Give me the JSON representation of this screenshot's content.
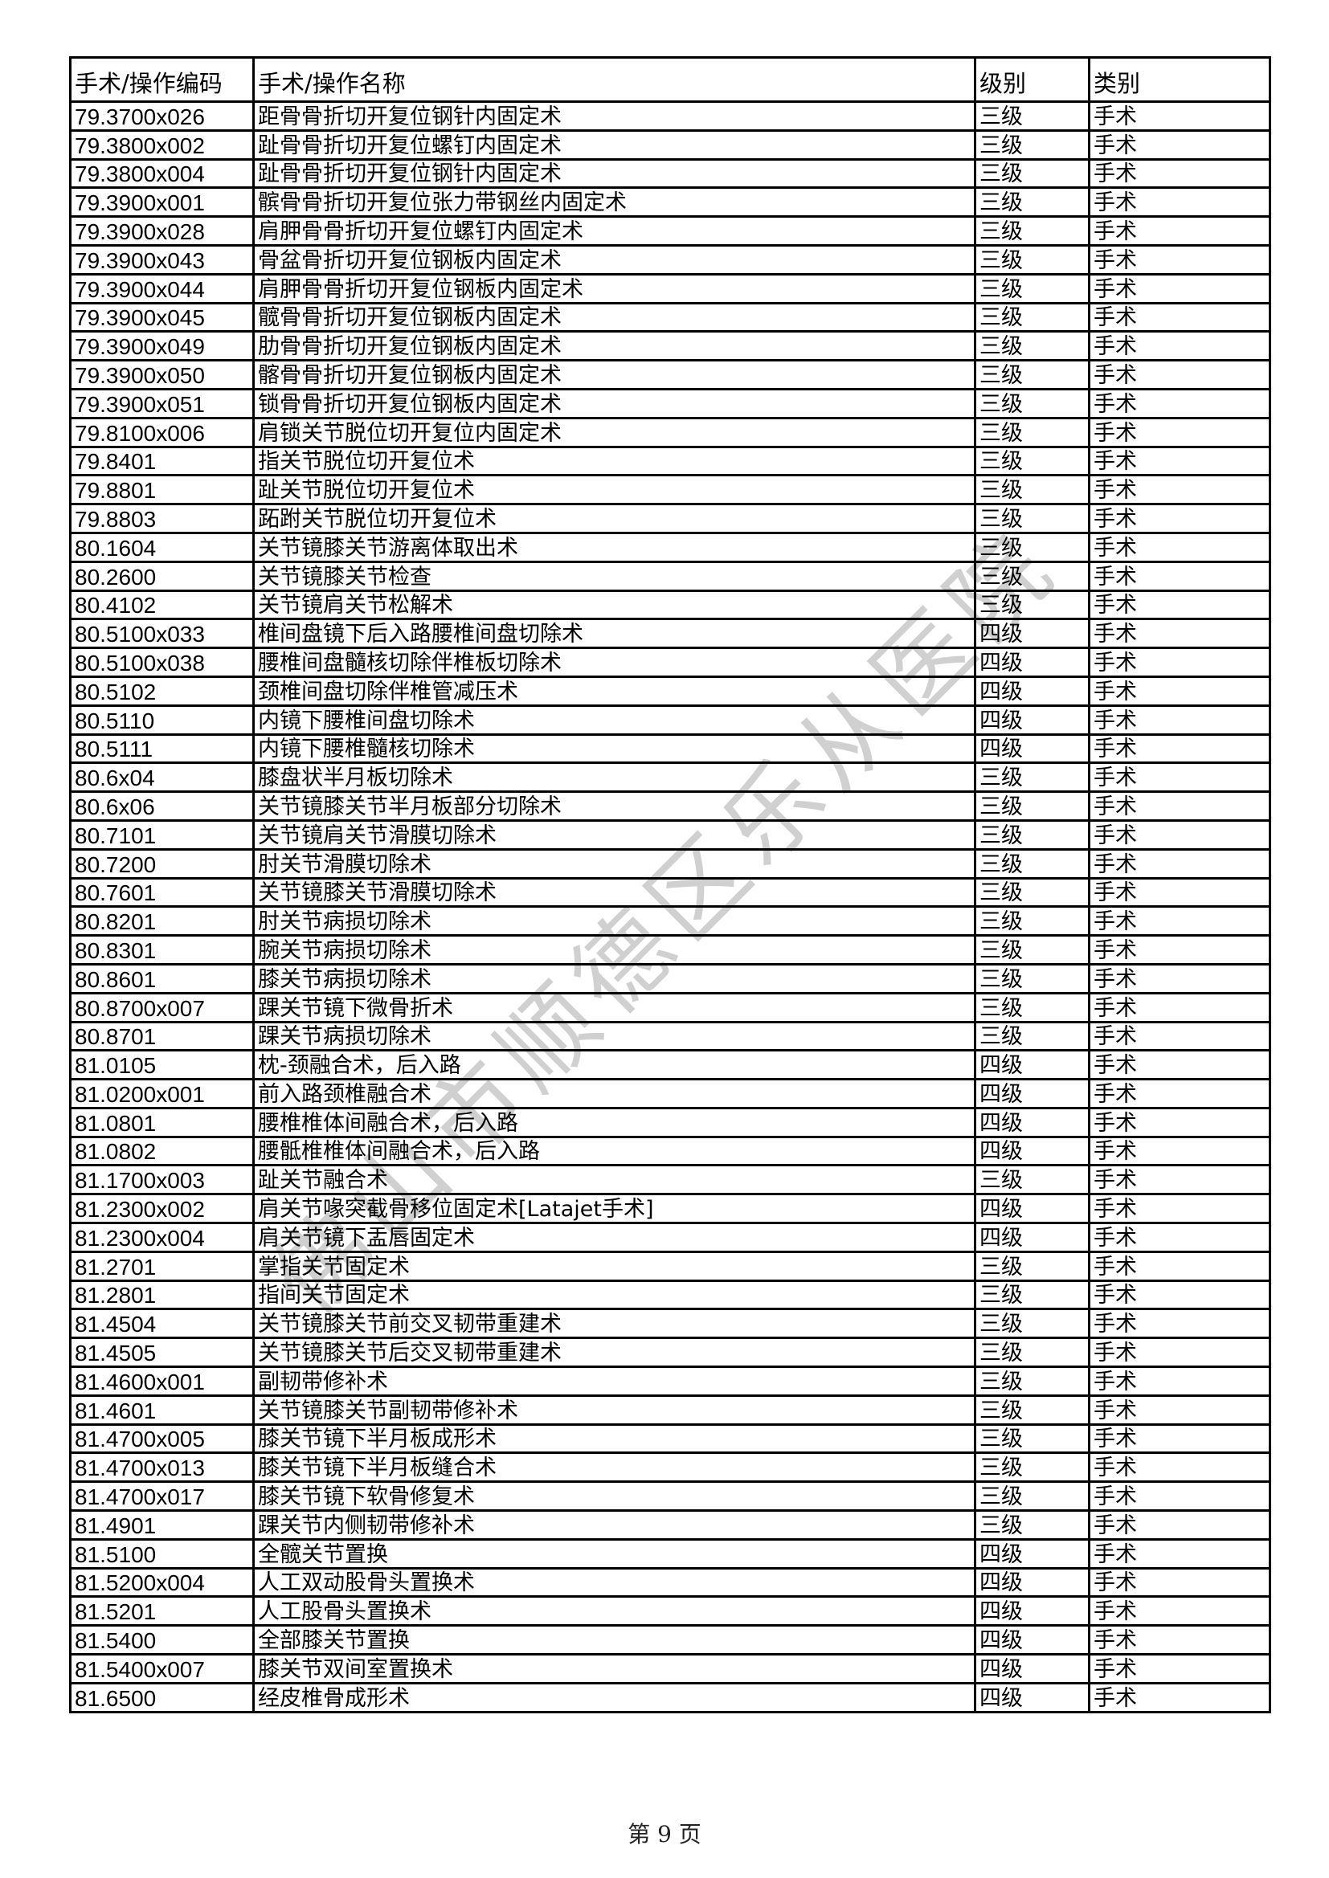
{
  "table": {
    "headers": [
      "手术/操作编码",
      "手术/操作名称",
      "级别",
      "类别"
    ],
    "rows": [
      [
        "79.3700x026",
        "距骨骨折切开复位钢针内固定术",
        "三级",
        "手术"
      ],
      [
        "79.3800x002",
        "趾骨骨折切开复位螺钉内固定术",
        "三级",
        "手术"
      ],
      [
        "79.3800x004",
        "趾骨骨折切开复位钢针内固定术",
        "三级",
        "手术"
      ],
      [
        "79.3900x001",
        "髌骨骨折切开复位张力带钢丝内固定术",
        "三级",
        "手术"
      ],
      [
        "79.3900x028",
        "肩胛骨骨折切开复位螺钉内固定术",
        "三级",
        "手术"
      ],
      [
        "79.3900x043",
        "骨盆骨折切开复位钢板内固定术",
        "三级",
        "手术"
      ],
      [
        "79.3900x044",
        "肩胛骨骨折切开复位钢板内固定术",
        "三级",
        "手术"
      ],
      [
        "79.3900x045",
        "髋骨骨折切开复位钢板内固定术",
        "三级",
        "手术"
      ],
      [
        "79.3900x049",
        "肋骨骨折切开复位钢板内固定术",
        "三级",
        "手术"
      ],
      [
        "79.3900x050",
        "髂骨骨折切开复位钢板内固定术",
        "三级",
        "手术"
      ],
      [
        "79.3900x051",
        "锁骨骨折切开复位钢板内固定术",
        "三级",
        "手术"
      ],
      [
        "79.8100x006",
        "肩锁关节脱位切开复位内固定术",
        "三级",
        "手术"
      ],
      [
        "79.8401",
        "指关节脱位切开复位术",
        "三级",
        "手术"
      ],
      [
        "79.8801",
        "趾关节脱位切开复位术",
        "三级",
        "手术"
      ],
      [
        "79.8803",
        "跖跗关节脱位切开复位术",
        "三级",
        "手术"
      ],
      [
        "80.1604",
        "关节镜膝关节游离体取出术",
        "三级",
        "手术"
      ],
      [
        "80.2600",
        "关节镜膝关节检查",
        "三级",
        "手术"
      ],
      [
        "80.4102",
        "关节镜肩关节松解术",
        "三级",
        "手术"
      ],
      [
        "80.5100x033",
        "椎间盘镜下后入路腰椎间盘切除术",
        "四级",
        "手术"
      ],
      [
        "80.5100x038",
        "腰椎间盘髓核切除伴椎板切除术",
        "四级",
        "手术"
      ],
      [
        "80.5102",
        "颈椎间盘切除伴椎管减压术",
        "四级",
        "手术"
      ],
      [
        "80.5110",
        "内镜下腰椎间盘切除术",
        "四级",
        "手术"
      ],
      [
        "80.5111",
        "内镜下腰椎髓核切除术",
        "四级",
        "手术"
      ],
      [
        "80.6x04",
        "膝盘状半月板切除术",
        "三级",
        "手术"
      ],
      [
        "80.6x06",
        "关节镜膝关节半月板部分切除术",
        "三级",
        "手术"
      ],
      [
        "80.7101",
        "关节镜肩关节滑膜切除术",
        "三级",
        "手术"
      ],
      [
        "80.7200",
        "肘关节滑膜切除术",
        "三级",
        "手术"
      ],
      [
        "80.7601",
        "关节镜膝关节滑膜切除术",
        "三级",
        "手术"
      ],
      [
        "80.8201",
        "肘关节病损切除术",
        "三级",
        "手术"
      ],
      [
        "80.8301",
        "腕关节病损切除术",
        "三级",
        "手术"
      ],
      [
        "80.8601",
        "膝关节病损切除术",
        "三级",
        "手术"
      ],
      [
        "80.8700x007",
        "踝关节镜下微骨折术",
        "三级",
        "手术"
      ],
      [
        "80.8701",
        "踝关节病损切除术",
        "三级",
        "手术"
      ],
      [
        "81.0105",
        "枕-颈融合术，后入路",
        "四级",
        "手术"
      ],
      [
        "81.0200x001",
        "前入路颈椎融合术",
        "四级",
        "手术"
      ],
      [
        "81.0801",
        "腰椎椎体间融合术，后入路",
        "四级",
        "手术"
      ],
      [
        "81.0802",
        "腰骶椎椎体间融合术，后入路",
        "四级",
        "手术"
      ],
      [
        "81.1700x003",
        "趾关节融合术",
        "三级",
        "手术"
      ],
      [
        "81.2300x002",
        "肩关节喙突截骨移位固定术[Latajet手术]",
        "四级",
        "手术"
      ],
      [
        "81.2300x004",
        "肩关节镜下盂唇固定术",
        "四级",
        "手术"
      ],
      [
        "81.2701",
        "掌指关节固定术",
        "三级",
        "手术"
      ],
      [
        "81.2801",
        "指间关节固定术",
        "三级",
        "手术"
      ],
      [
        "81.4504",
        "关节镜膝关节前交叉韧带重建术",
        "三级",
        "手术"
      ],
      [
        "81.4505",
        "关节镜膝关节后交叉韧带重建术",
        "三级",
        "手术"
      ],
      [
        "81.4600x001",
        "副韧带修补术",
        "三级",
        "手术"
      ],
      [
        "81.4601",
        "关节镜膝关节副韧带修补术",
        "三级",
        "手术"
      ],
      [
        "81.4700x005",
        "膝关节镜下半月板成形术",
        "三级",
        "手术"
      ],
      [
        "81.4700x013",
        "膝关节镜下半月板缝合术",
        "三级",
        "手术"
      ],
      [
        "81.4700x017",
        "膝关节镜下软骨修复术",
        "三级",
        "手术"
      ],
      [
        "81.4901",
        "踝关节内侧韧带修补术",
        "三级",
        "手术"
      ],
      [
        "81.5100",
        "全髋关节置换",
        "四级",
        "手术"
      ],
      [
        "81.5200x004",
        "人工双动股骨头置换术",
        "四级",
        "手术"
      ],
      [
        "81.5201",
        "人工股骨头置换术",
        "四级",
        "手术"
      ],
      [
        "81.5400",
        "全部膝关节置换",
        "四级",
        "手术"
      ],
      [
        "81.5400x007",
        "膝关节双间室置换术",
        "四级",
        "手术"
      ],
      [
        "81.6500",
        "经皮椎骨成形术",
        "四级",
        "手术"
      ]
    ]
  },
  "footer": {
    "page_label": "第 9 页"
  },
  "watermark": {
    "text": "佛山市顺德区乐从医院"
  }
}
